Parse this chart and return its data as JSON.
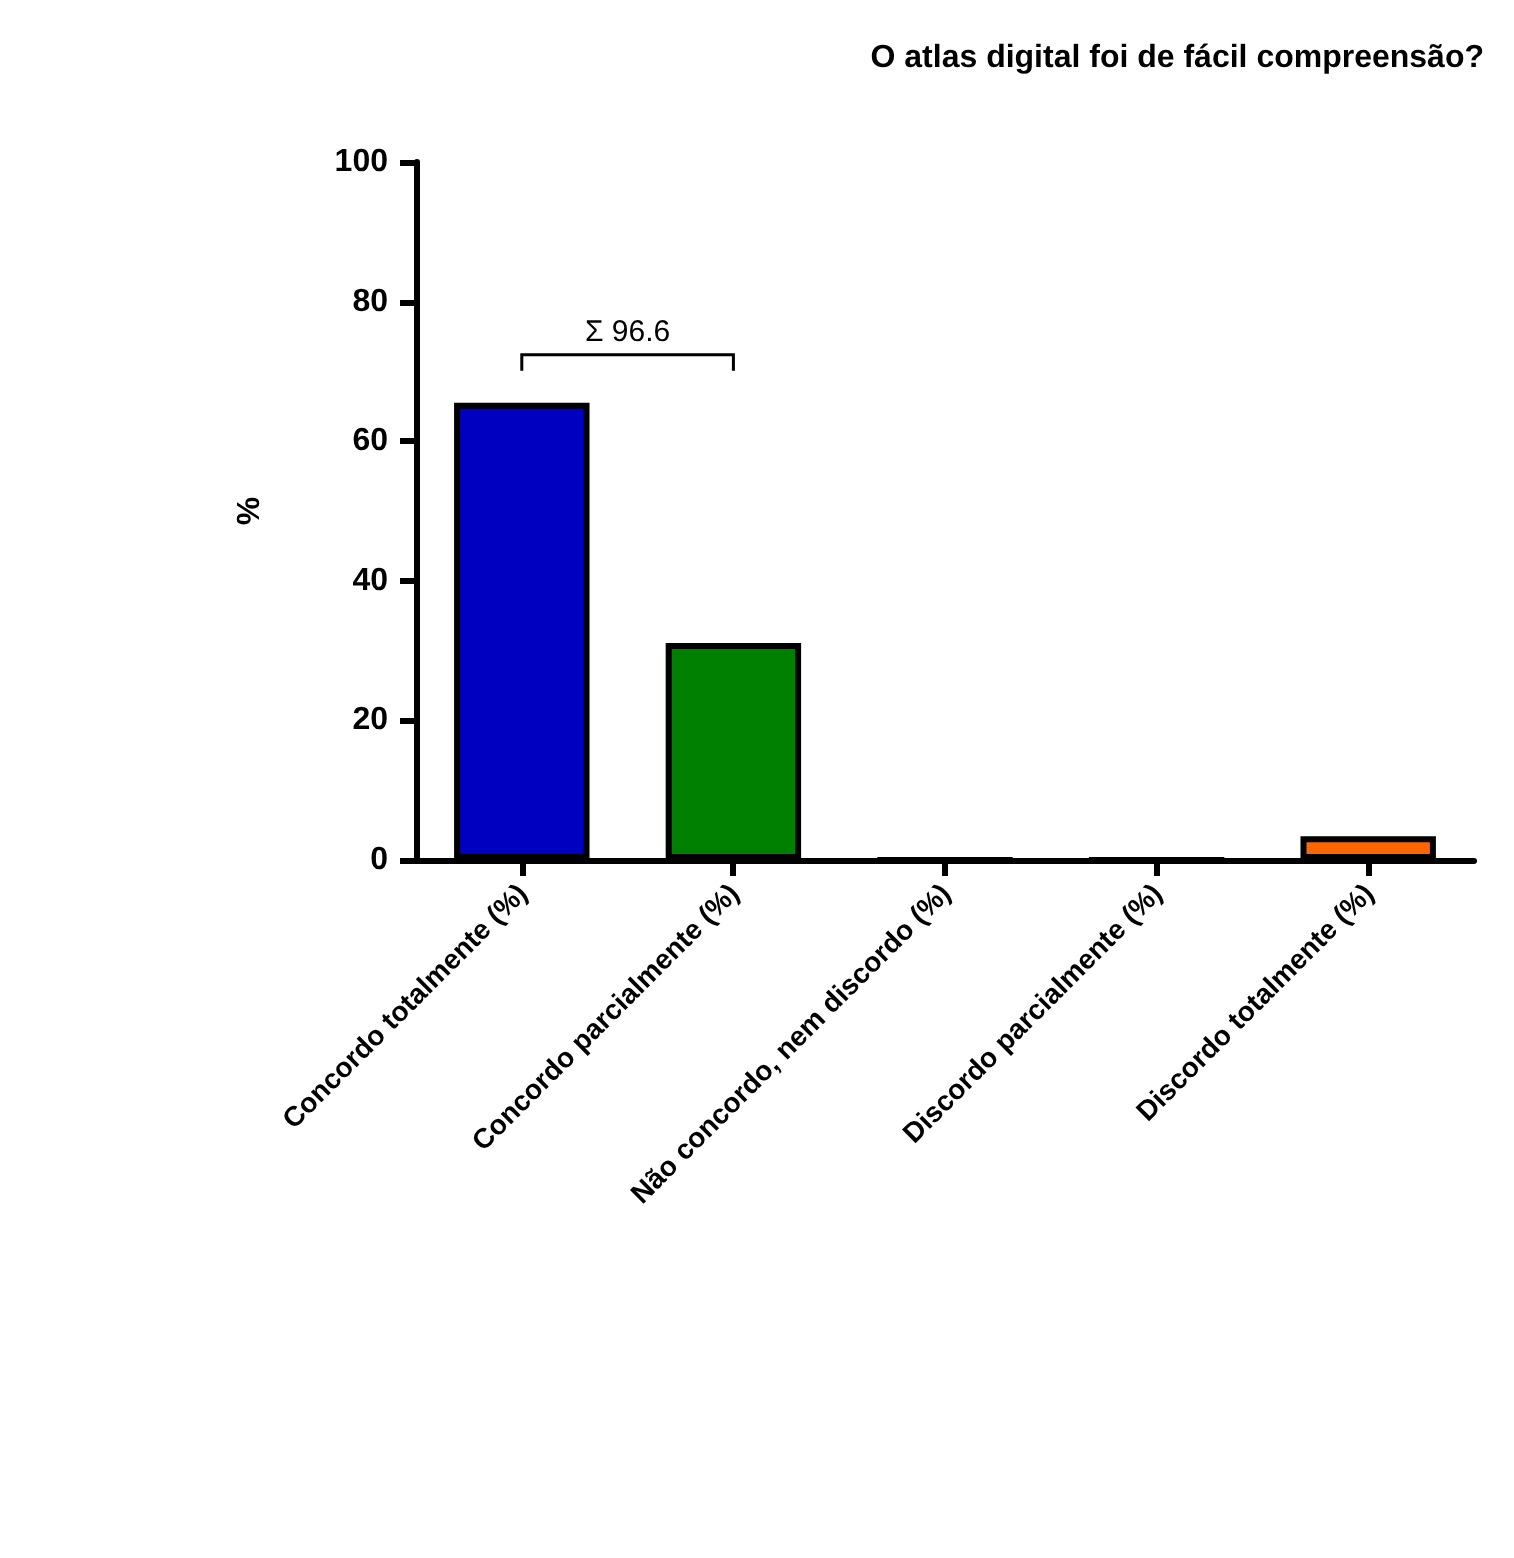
{
  "chart_data": {
    "type": "bar",
    "title": "O atlas digital foi de fácil compreensão?",
    "ylabel": "%",
    "categories": [
      "Concordo totalmente (%)",
      "Concordo parcialmente (%)",
      "Não concordo, nem discordo (%)",
      "Discordo parcialmente (%)",
      "Discordo totalmente (%)"
    ],
    "values": [
      65.5,
      31.1,
      0,
      0,
      3.4
    ],
    "colors": [
      "#0000c0",
      "#008000",
      "#808080",
      "#808080",
      "#ff6600"
    ],
    "ylim": [
      0,
      100
    ],
    "yticks": [
      0,
      20,
      40,
      60,
      80,
      100
    ],
    "grid": false,
    "annotations": [
      "Σ 96.6"
    ]
  }
}
